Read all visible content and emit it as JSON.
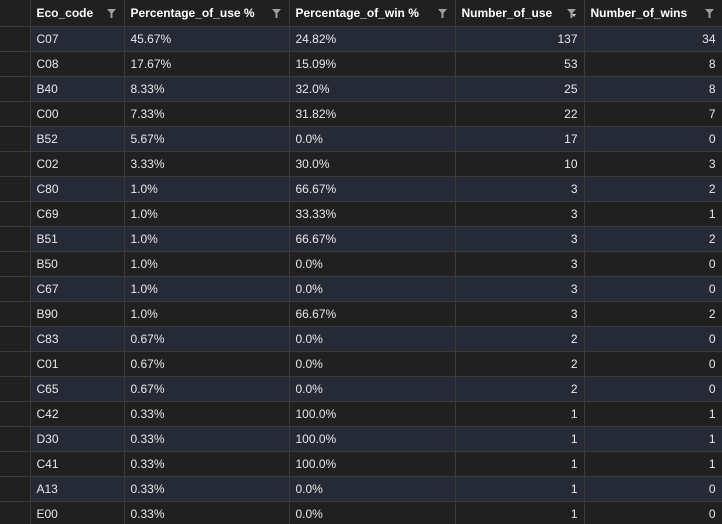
{
  "columns": [
    {
      "label": "Eco_code",
      "icon": "filter-icon"
    },
    {
      "label": "Percentage_of_use %",
      "icon": "filter-icon"
    },
    {
      "label": "Percentage_of_win %",
      "icon": "filter-icon"
    },
    {
      "label": "Number_of_use",
      "icon": "sort-descending-filter-icon"
    },
    {
      "label": "Number_of_wins",
      "icon": "filter-icon"
    }
  ],
  "rows": [
    {
      "eco": "C07",
      "pct_use": "45.67%",
      "pct_win": "24.82%",
      "n_use": "137",
      "n_wins": "34"
    },
    {
      "eco": "C08",
      "pct_use": "17.67%",
      "pct_win": "15.09%",
      "n_use": "53",
      "n_wins": "8"
    },
    {
      "eco": "B40",
      "pct_use": "8.33%",
      "pct_win": "32.0%",
      "n_use": "25",
      "n_wins": "8"
    },
    {
      "eco": "C00",
      "pct_use": "7.33%",
      "pct_win": "31.82%",
      "n_use": "22",
      "n_wins": "7"
    },
    {
      "eco": "B52",
      "pct_use": "5.67%",
      "pct_win": "0.0%",
      "n_use": "17",
      "n_wins": "0"
    },
    {
      "eco": "C02",
      "pct_use": "3.33%",
      "pct_win": "30.0%",
      "n_use": "10",
      "n_wins": "3"
    },
    {
      "eco": "C80",
      "pct_use": "1.0%",
      "pct_win": "66.67%",
      "n_use": "3",
      "n_wins": "2"
    },
    {
      "eco": "C69",
      "pct_use": "1.0%",
      "pct_win": "33.33%",
      "n_use": "3",
      "n_wins": "1"
    },
    {
      "eco": "B51",
      "pct_use": "1.0%",
      "pct_win": "66.67%",
      "n_use": "3",
      "n_wins": "2"
    },
    {
      "eco": "B50",
      "pct_use": "1.0%",
      "pct_win": "0.0%",
      "n_use": "3",
      "n_wins": "0"
    },
    {
      "eco": "C67",
      "pct_use": "1.0%",
      "pct_win": "0.0%",
      "n_use": "3",
      "n_wins": "0"
    },
    {
      "eco": "B90",
      "pct_use": "1.0%",
      "pct_win": "66.67%",
      "n_use": "3",
      "n_wins": "2"
    },
    {
      "eco": "C83",
      "pct_use": "0.67%",
      "pct_win": "0.0%",
      "n_use": "2",
      "n_wins": "0"
    },
    {
      "eco": "C01",
      "pct_use": "0.67%",
      "pct_win": "0.0%",
      "n_use": "2",
      "n_wins": "0"
    },
    {
      "eco": "C65",
      "pct_use": "0.67%",
      "pct_win": "0.0%",
      "n_use": "2",
      "n_wins": "0"
    },
    {
      "eco": "C42",
      "pct_use": "0.33%",
      "pct_win": "100.0%",
      "n_use": "1",
      "n_wins": "1"
    },
    {
      "eco": "D30",
      "pct_use": "0.33%",
      "pct_win": "100.0%",
      "n_use": "1",
      "n_wins": "1"
    },
    {
      "eco": "C41",
      "pct_use": "0.33%",
      "pct_win": "100.0%",
      "n_use": "1",
      "n_wins": "1"
    },
    {
      "eco": "A13",
      "pct_use": "0.33%",
      "pct_win": "0.0%",
      "n_use": "1",
      "n_wins": "0"
    },
    {
      "eco": "E00",
      "pct_use": "0.33%",
      "pct_win": "0.0%",
      "n_use": "1",
      "n_wins": "0"
    }
  ],
  "colors": {
    "background": "#202020",
    "row_stripe": "#262a36",
    "grid_line": "#3a3a3a",
    "text": "#e8e8e8",
    "icon": "#a0a0a0"
  }
}
